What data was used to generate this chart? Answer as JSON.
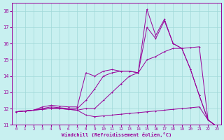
{
  "xlabel": "Windchill (Refroidissement éolien,°C)",
  "bg_color": "#c8f0f0",
  "grid_color": "#a0d8d8",
  "line_color": "#990099",
  "xlim": [
    -0.5,
    23.5
  ],
  "ylim": [
    11,
    18.5
  ],
  "xticks": [
    0,
    1,
    2,
    3,
    4,
    5,
    6,
    7,
    8,
    9,
    10,
    11,
    12,
    13,
    14,
    15,
    16,
    17,
    18,
    19,
    20,
    21,
    22,
    23
  ],
  "yticks": [
    11,
    12,
    13,
    14,
    15,
    16,
    17,
    18
  ],
  "lines": [
    [
      11.8,
      11.85,
      11.9,
      11.95,
      12.0,
      12.0,
      11.95,
      11.9,
      11.6,
      11.5,
      11.55,
      11.6,
      11.65,
      11.7,
      11.75,
      11.8,
      11.85,
      11.9,
      11.95,
      12.0,
      12.05,
      12.1,
      11.3,
      10.9
    ],
    [
      11.8,
      11.85,
      11.9,
      11.95,
      12.0,
      12.0,
      11.95,
      11.9,
      12.0,
      12.0,
      12.5,
      13.0,
      13.5,
      14.0,
      14.2,
      15.0,
      15.2,
      15.5,
      15.7,
      15.7,
      15.75,
      15.8,
      11.3,
      10.9
    ],
    [
      11.8,
      11.85,
      11.9,
      12.0,
      12.1,
      12.05,
      12.0,
      12.0,
      12.5,
      13.2,
      14.0,
      14.2,
      14.3,
      14.3,
      14.2,
      17.0,
      16.3,
      17.4,
      16.0,
      15.7,
      14.4,
      12.8,
      11.3,
      10.9
    ],
    [
      11.8,
      11.85,
      11.9,
      12.1,
      12.2,
      12.15,
      12.1,
      12.1,
      14.2,
      14.0,
      14.3,
      14.4,
      14.3,
      14.3,
      14.2,
      18.1,
      16.5,
      17.5,
      16.0,
      15.7,
      14.4,
      12.8,
      11.3,
      10.9
    ]
  ]
}
